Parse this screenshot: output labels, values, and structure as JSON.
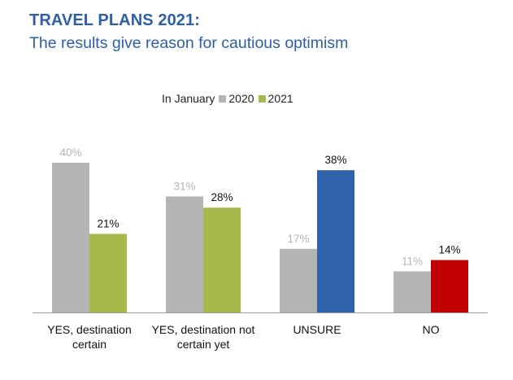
{
  "header": {
    "title": "TRAVEL PLANS 2021:",
    "subtitle": "The results give reason for cautious optimism"
  },
  "legend": {
    "prefix": "In January",
    "items": [
      {
        "label": "2020",
        "color": "#b4b4b4"
      },
      {
        "label": "2021",
        "color": "#a8b94c"
      }
    ]
  },
  "chart_data": {
    "type": "bar",
    "title": "",
    "xlabel": "",
    "ylabel": "",
    "ylim": [
      0,
      40
    ],
    "grid": false,
    "legend_position": "top-center",
    "categories": [
      [
        "YES, destination",
        "certain"
      ],
      [
        "YES, destination not",
        "certain yet"
      ],
      [
        "UNSURE"
      ],
      [
        "NO"
      ]
    ],
    "series": [
      {
        "name": "2020",
        "values": [
          40,
          31,
          17,
          11
        ],
        "labels": [
          "40%",
          "31%",
          "17%",
          "11%"
        ],
        "colors": [
          "#b4b4b4",
          "#b4b4b4",
          "#b4b4b4",
          "#b4b4b4"
        ],
        "label_color": "#b4b4b4"
      },
      {
        "name": "2021",
        "values": [
          21,
          28,
          38,
          14
        ],
        "labels": [
          "21%",
          "28%",
          "38%",
          "14%"
        ],
        "colors": [
          "#a8b94c",
          "#a8b94c",
          "#2e62ab",
          "#c00000"
        ],
        "label_color": "#111111"
      }
    ]
  }
}
